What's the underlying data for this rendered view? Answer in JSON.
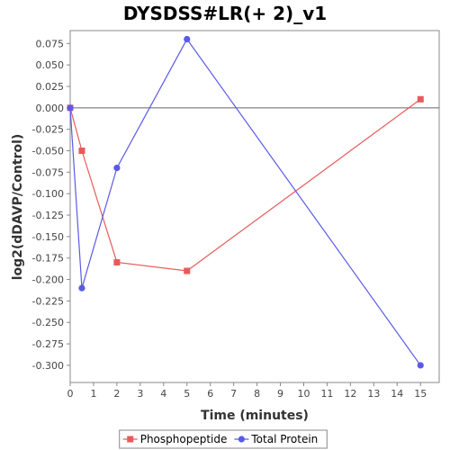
{
  "chart_data": {
    "type": "line",
    "title": "DYSDSS#LR(+ 2)_v1",
    "xlabel": "Time (minutes)",
    "ylabel": "log2(dDAVP/Control)",
    "xlim": [
      0,
      15.8
    ],
    "ylim": [
      -0.32,
      0.09
    ],
    "x_ticks": [
      0,
      1,
      2,
      3,
      4,
      5,
      6,
      7,
      8,
      9,
      10,
      11,
      12,
      13,
      14,
      15
    ],
    "y_ticks": [
      0.075,
      0.05,
      0.025,
      0.0,
      -0.025,
      -0.05,
      -0.075,
      -0.1,
      -0.125,
      -0.15,
      -0.175,
      -0.2,
      -0.225,
      -0.25,
      -0.275,
      -0.3
    ],
    "y_tick_labels": [
      "0.075",
      "0.050",
      "0.025",
      "0.000",
      "-0.025",
      "-0.050",
      "-0.075",
      "-0.100",
      "-0.125",
      "-0.150",
      "-0.175",
      "-0.200",
      "-0.225",
      "-0.250",
      "-0.275",
      "-0.300"
    ],
    "zero_line": 0.0,
    "grid": false,
    "legend_position": "bottom",
    "series": [
      {
        "name": "Phosphopeptide",
        "color": "#e85a5a",
        "marker": "square",
        "x": [
          0,
          0.5,
          2,
          5,
          15
        ],
        "y": [
          0.0,
          -0.05,
          -0.18,
          -0.19,
          0.01
        ]
      },
      {
        "name": "Total Protein",
        "color": "#5a5ae8",
        "marker": "circle",
        "x": [
          0,
          0.5,
          2,
          5,
          15
        ],
        "y": [
          0.0,
          -0.21,
          -0.07,
          0.08,
          -0.3
        ]
      }
    ]
  }
}
